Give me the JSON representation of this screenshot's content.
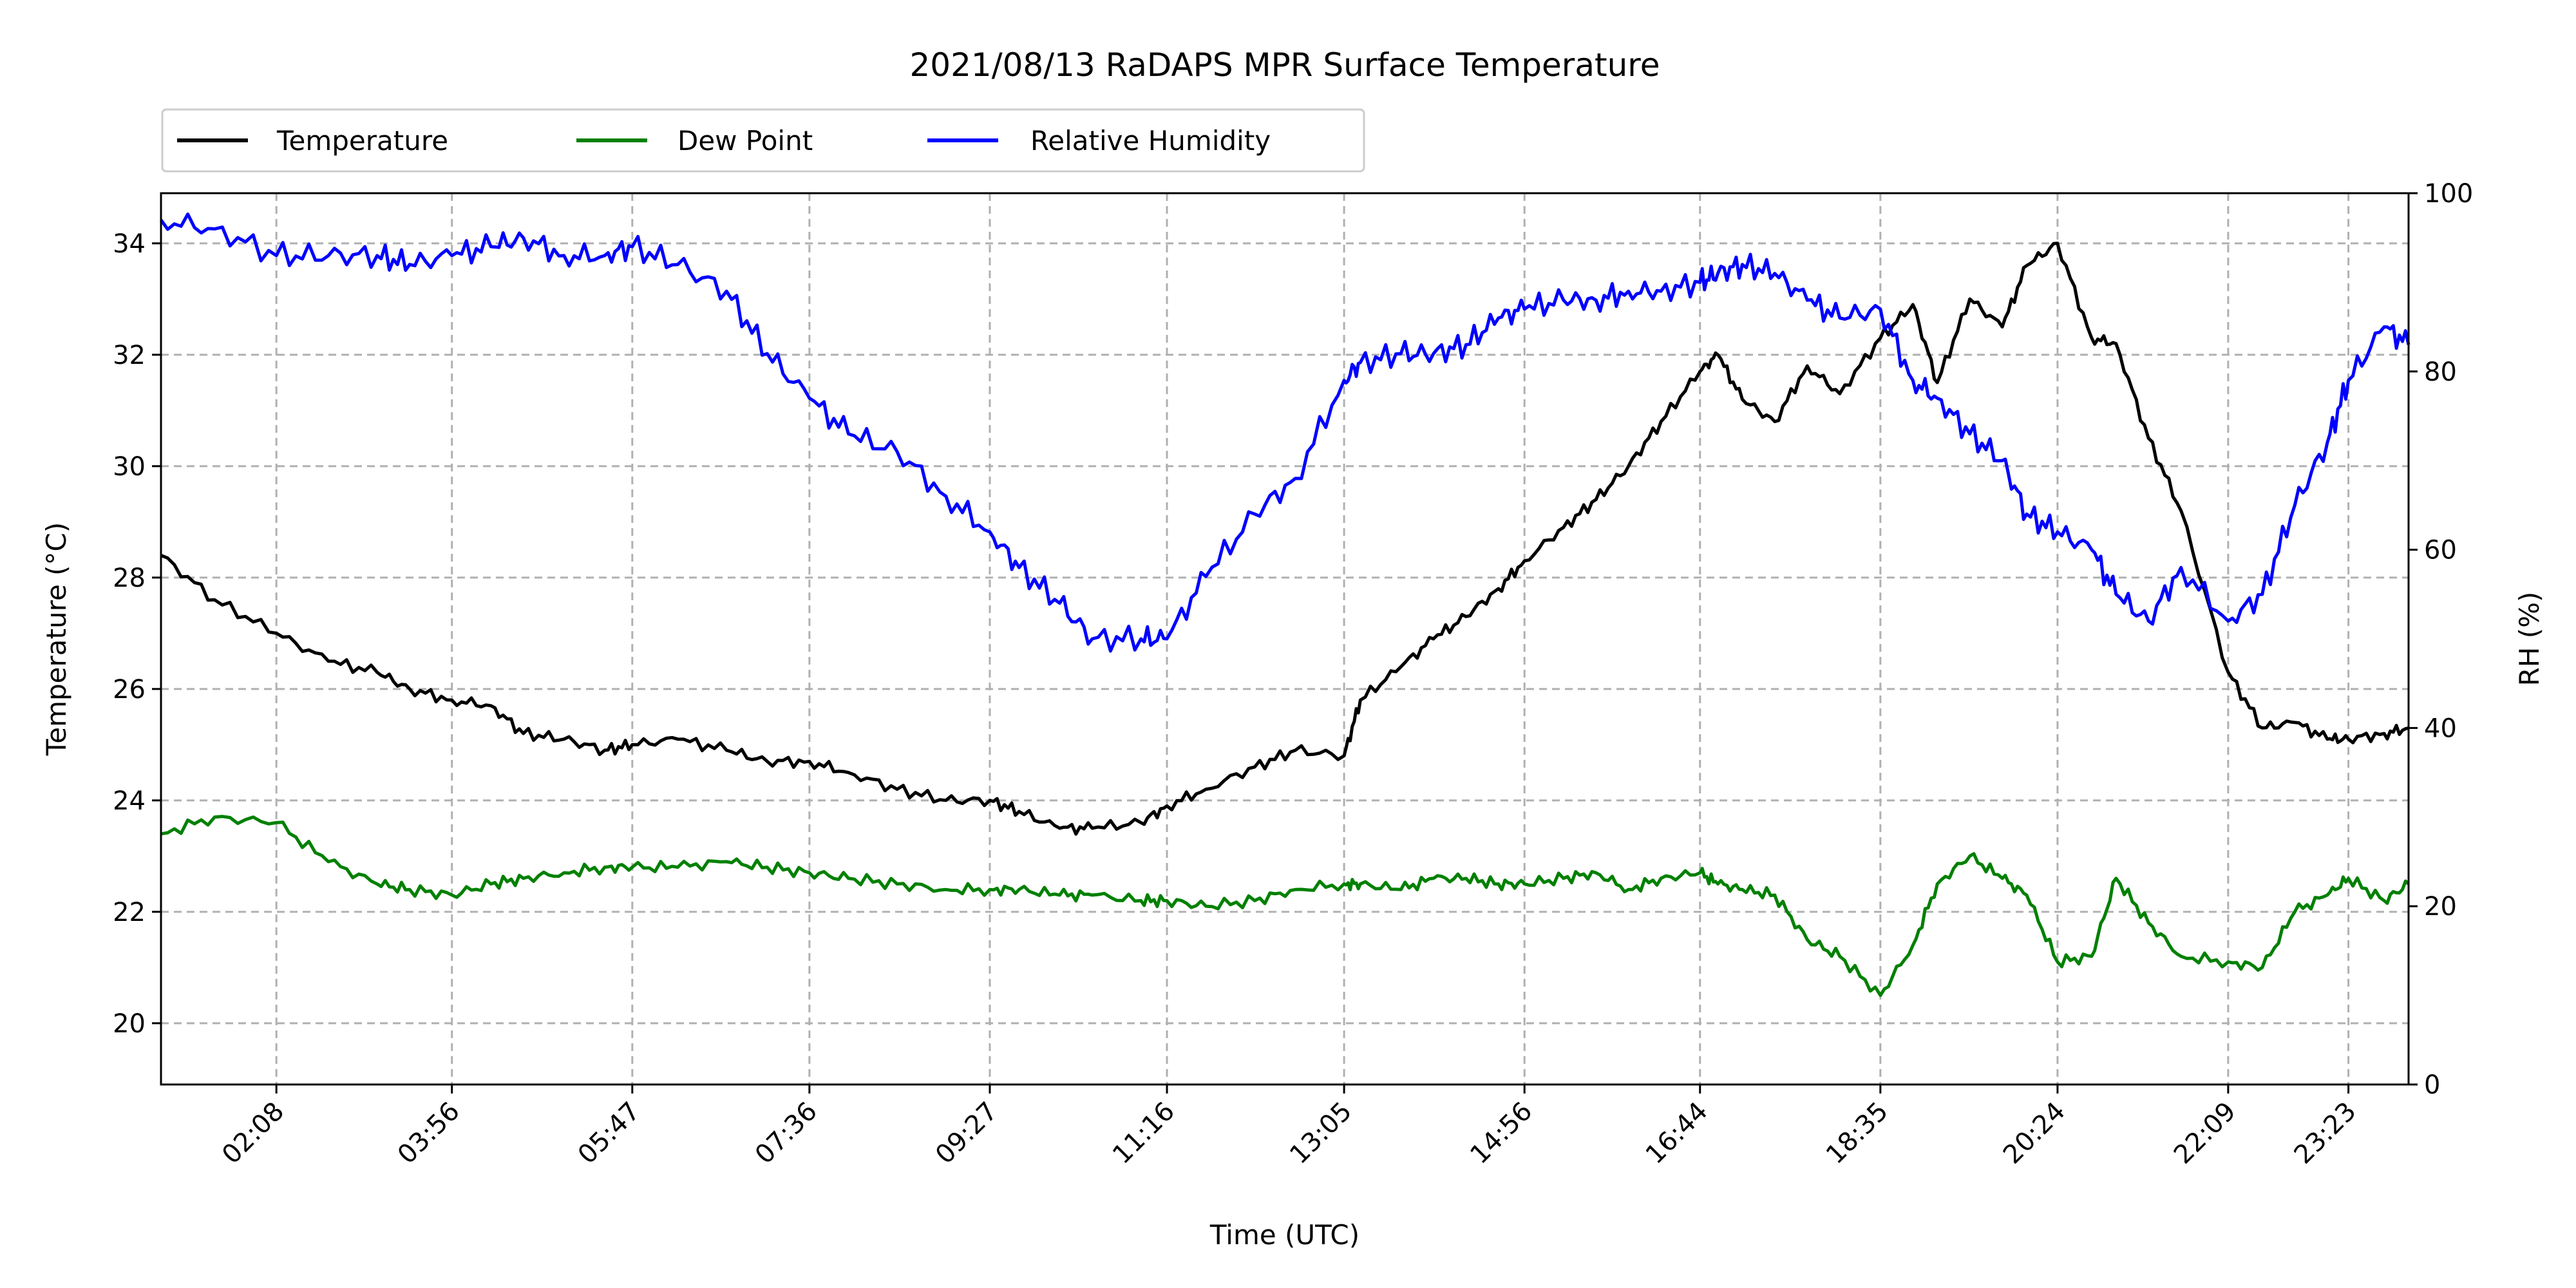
{
  "chart_data": {
    "type": "line",
    "title": "2021/08/13 RaDAPS MPR Surface Temperature",
    "xlabel": "Time (UTC)",
    "ylabel": "Temperature ($^\\circ$C)",
    "ylabel_right": "RH (%)",
    "x_unit": "time of day (UTC)",
    "x_range": [
      "00:57",
      "24:00"
    ],
    "x_ticks": [
      "02:08",
      "03:56",
      "05:47",
      "07:36",
      "09:27",
      "11:16",
      "13:05",
      "14:56",
      "16:44",
      "18:35",
      "20:24",
      "22:09",
      "23:23"
    ],
    "y_left_ticks": [
      20,
      22,
      24,
      26,
      28,
      30,
      32,
      34
    ],
    "y_left_range": [
      18.9,
      34.9
    ],
    "y_right_ticks": [
      0,
      20,
      40,
      60,
      80,
      100
    ],
    "y_right_range": [
      0,
      100
    ],
    "grid": true,
    "legend_placement": "top-left, above plot",
    "series": [
      {
        "name": "Temperature",
        "axis": "left",
        "color": "#000000",
        "x": [
          "00:57",
          "01:30",
          "02:08",
          "02:40",
          "03:10",
          "03:30",
          "03:56",
          "04:20",
          "04:40",
          "05:05",
          "05:30",
          "05:47",
          "06:15",
          "06:45",
          "07:10",
          "07:36",
          "08:00",
          "08:30",
          "09:00",
          "09:27",
          "09:45",
          "10:10",
          "10:30",
          "11:00",
          "11:16",
          "11:40",
          "12:10",
          "12:35",
          "13:05",
          "13:15",
          "13:40",
          "14:00",
          "14:20",
          "14:40",
          "14:56",
          "15:20",
          "15:40",
          "16:00",
          "16:20",
          "16:44",
          "16:55",
          "17:10",
          "17:30",
          "17:50",
          "18:10",
          "18:35",
          "18:55",
          "19:10",
          "19:30",
          "19:50",
          "20:05",
          "20:24",
          "20:45",
          "21:00",
          "21:20",
          "21:40",
          "22:09",
          "22:30",
          "22:50",
          "23:10",
          "23:23",
          "23:45",
          "24:00"
        ],
        "values": [
          28.4,
          27.6,
          27.0,
          26.5,
          26.3,
          26.0,
          25.8,
          25.7,
          25.2,
          25.1,
          24.9,
          25.0,
          25.1,
          24.9,
          24.7,
          24.7,
          24.5,
          24.2,
          24.0,
          24.0,
          23.8,
          23.5,
          23.5,
          23.6,
          23.9,
          24.2,
          24.6,
          24.9,
          24.8,
          25.8,
          26.4,
          26.9,
          27.3,
          27.8,
          28.3,
          28.9,
          29.4,
          30.0,
          30.8,
          31.7,
          32.0,
          31.2,
          30.8,
          31.8,
          31.3,
          32.3,
          32.9,
          31.5,
          33.0,
          32.5,
          33.6,
          34.0,
          32.3,
          32.2,
          30.5,
          29.2,
          26.3,
          25.3,
          25.4,
          25.1,
          25.1,
          25.2,
          25.3
        ]
      },
      {
        "name": "Dew Point",
        "axis": "left",
        "color": "#008000",
        "x": [
          "00:57",
          "01:30",
          "02:08",
          "02:40",
          "03:10",
          "03:30",
          "03:56",
          "04:20",
          "04:40",
          "05:05",
          "05:30",
          "05:47",
          "06:15",
          "06:45",
          "07:10",
          "07:36",
          "08:00",
          "08:30",
          "09:00",
          "09:27",
          "09:45",
          "10:10",
          "10:30",
          "11:00",
          "11:16",
          "11:40",
          "12:10",
          "12:35",
          "13:05",
          "13:15",
          "13:40",
          "14:00",
          "14:20",
          "14:40",
          "14:56",
          "15:20",
          "15:40",
          "16:00",
          "16:20",
          "16:44",
          "16:55",
          "17:10",
          "17:30",
          "17:50",
          "18:10",
          "18:35",
          "18:55",
          "19:10",
          "19:30",
          "19:50",
          "20:05",
          "20:24",
          "20:45",
          "21:00",
          "21:20",
          "21:40",
          "22:09",
          "22:30",
          "22:50",
          "23:10",
          "23:23",
          "23:45",
          "24:00"
        ],
        "values": [
          23.4,
          23.7,
          23.6,
          22.9,
          22.5,
          22.4,
          22.3,
          22.5,
          22.6,
          22.7,
          22.8,
          22.8,
          22.8,
          22.9,
          22.8,
          22.7,
          22.6,
          22.5,
          22.4,
          22.4,
          22.4,
          22.3,
          22.3,
          22.2,
          22.2,
          22.1,
          22.2,
          22.4,
          22.5,
          22.5,
          22.4,
          22.6,
          22.6,
          22.5,
          22.5,
          22.6,
          22.7,
          22.4,
          22.6,
          22.7,
          22.5,
          22.4,
          22.3,
          21.5,
          21.2,
          20.5,
          21.4,
          22.5,
          23.0,
          22.6,
          22.3,
          21.1,
          21.2,
          22.6,
          21.8,
          21.2,
          21.1,
          21.0,
          22.0,
          22.3,
          22.6,
          22.2,
          22.5
        ]
      },
      {
        "name": "Relative Humidity",
        "axis": "right",
        "color": "#0000ff",
        "x": [
          "00:57",
          "01:30",
          "02:08",
          "02:40",
          "03:10",
          "03:30",
          "03:56",
          "04:20",
          "04:40",
          "05:05",
          "05:30",
          "05:47",
          "06:15",
          "06:45",
          "07:10",
          "07:36",
          "08:00",
          "08:30",
          "09:00",
          "09:27",
          "09:45",
          "10:10",
          "10:30",
          "11:00",
          "11:16",
          "11:40",
          "12:10",
          "12:35",
          "13:05",
          "13:15",
          "13:40",
          "14:00",
          "14:20",
          "14:40",
          "14:56",
          "15:20",
          "15:40",
          "16:00",
          "16:20",
          "16:44",
          "16:55",
          "17:10",
          "17:30",
          "17:50",
          "18:10",
          "18:35",
          "18:55",
          "19:10",
          "19:30",
          "19:50",
          "20:05",
          "20:24",
          "20:45",
          "21:00",
          "21:20",
          "21:40",
          "22:09",
          "22:30",
          "22:50",
          "23:10",
          "23:23",
          "23:45",
          "24:00"
        ],
        "values": [
          97,
          96,
          93,
          93,
          93,
          92,
          93,
          94,
          95,
          93,
          93,
          94,
          92,
          89,
          82,
          77,
          73,
          71,
          66,
          62,
          58,
          54,
          50,
          50,
          50,
          57,
          64,
          68,
          79,
          81,
          82,
          82,
          83,
          86,
          87,
          88,
          88,
          89,
          89,
          90,
          91,
          92,
          91,
          88,
          86,
          87,
          79,
          77,
          73,
          70,
          64,
          62,
          60,
          55,
          52,
          58,
          52,
          55,
          65,
          72,
          79,
          85,
          83
        ]
      }
    ]
  }
}
